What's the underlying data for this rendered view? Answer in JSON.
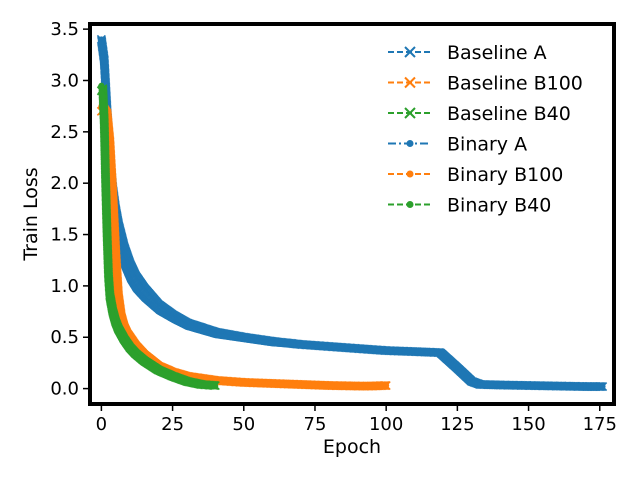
{
  "chart_data": {
    "type": "line",
    "title": "",
    "xlabel": "Epoch",
    "ylabel": "Train Loss",
    "xlim": [
      -4,
      180
    ],
    "ylim": [
      -0.15,
      3.55
    ],
    "x_ticks": [
      0,
      25,
      50,
      75,
      100,
      125,
      150,
      175
    ],
    "y_ticks": [
      0.0,
      0.5,
      1.0,
      1.5,
      2.0,
      2.5,
      3.0,
      3.5
    ],
    "x_tick_labels": [
      "0",
      "25",
      "50",
      "75",
      "100",
      "125",
      "150",
      "175"
    ],
    "y_tick_labels": [
      "0.0",
      "0.5",
      "1.0",
      "1.5",
      "2.0",
      "2.5",
      "3.0",
      "3.5"
    ],
    "grid": false,
    "legend_position": "top-right",
    "series": [
      {
        "name": "Baseline A",
        "color": "#1f77b4",
        "marker": "x",
        "dash": "dashed",
        "x": [
          0,
          1,
          2,
          3,
          4,
          5,
          6,
          8,
          10,
          12,
          15,
          20,
          25,
          30,
          40,
          50,
          60,
          70,
          80,
          90,
          100,
          110,
          119,
          125,
          130,
          133,
          140,
          150,
          160,
          170,
          176
        ],
        "y": [
          3.4,
          3.2,
          2.7,
          2.25,
          1.95,
          1.75,
          1.6,
          1.38,
          1.22,
          1.1,
          0.98,
          0.82,
          0.72,
          0.64,
          0.55,
          0.5,
          0.46,
          0.43,
          0.41,
          0.39,
          0.37,
          0.36,
          0.35,
          0.2,
          0.07,
          0.04,
          0.035,
          0.03,
          0.025,
          0.02,
          0.02
        ]
      },
      {
        "name": "Baseline B100",
        "color": "#ff7f0e",
        "marker": "x",
        "dash": "dashed",
        "x": [
          0,
          1,
          2,
          3,
          4,
          5,
          6,
          7,
          8,
          9,
          10,
          12,
          15,
          20,
          25,
          30,
          40,
          50,
          60,
          70,
          80,
          90,
          95,
          100
        ],
        "y": [
          2.7,
          2.72,
          2.68,
          2.4,
          1.9,
          1.35,
          0.9,
          0.7,
          0.6,
          0.54,
          0.5,
          0.42,
          0.33,
          0.22,
          0.16,
          0.12,
          0.08,
          0.06,
          0.05,
          0.04,
          0.03,
          0.025,
          0.025,
          0.03
        ]
      },
      {
        "name": "Baseline B40",
        "color": "#2ca02c",
        "marker": "x",
        "dash": "dashed",
        "x": [
          0,
          0.5,
          1,
          1.5,
          2,
          2.5,
          3,
          4,
          5,
          6,
          8,
          10,
          12,
          15,
          20,
          25,
          30,
          35,
          40
        ],
        "y": [
          2.9,
          2.92,
          2.6,
          2.0,
          1.5,
          1.1,
          0.9,
          0.75,
          0.65,
          0.58,
          0.48,
          0.4,
          0.34,
          0.27,
          0.18,
          0.12,
          0.07,
          0.04,
          0.03
        ]
      },
      {
        "name": "Binary A",
        "color": "#1f77b4",
        "marker": "dot",
        "dash": "dashdot",
        "x": [
          0,
          1,
          2,
          3,
          4,
          5,
          6,
          8,
          10,
          12,
          15,
          20,
          25,
          30,
          40,
          50,
          60,
          70,
          80,
          90,
          100,
          110,
          119,
          125,
          130,
          133,
          140,
          150,
          160,
          170,
          176
        ],
        "y": [
          3.4,
          3.0,
          2.4,
          2.0,
          1.7,
          1.5,
          1.35,
          1.18,
          1.05,
          0.96,
          0.87,
          0.75,
          0.67,
          0.6,
          0.52,
          0.48,
          0.44,
          0.42,
          0.4,
          0.38,
          0.37,
          0.36,
          0.34,
          0.2,
          0.06,
          0.04,
          0.035,
          0.03,
          0.025,
          0.02,
          0.02
        ]
      },
      {
        "name": "Binary B100",
        "color": "#ff7f0e",
        "marker": "dot",
        "dash": "dashed",
        "x": [
          0,
          1,
          2,
          3,
          4,
          5,
          6,
          7,
          8,
          9,
          10,
          12,
          15,
          20,
          25,
          30,
          40,
          50,
          60,
          70,
          80,
          90,
          95,
          100
        ],
        "y": [
          2.75,
          2.7,
          2.6,
          2.2,
          1.7,
          1.2,
          0.85,
          0.66,
          0.57,
          0.51,
          0.47,
          0.4,
          0.31,
          0.2,
          0.15,
          0.11,
          0.075,
          0.055,
          0.045,
          0.035,
          0.028,
          0.022,
          0.022,
          0.03
        ]
      },
      {
        "name": "Binary B40",
        "color": "#2ca02c",
        "marker": "dot",
        "dash": "dashed",
        "x": [
          0,
          0.5,
          1,
          1.5,
          2,
          2.5,
          3,
          4,
          5,
          6,
          8,
          10,
          12,
          15,
          20,
          25,
          30,
          35,
          40
        ],
        "y": [
          2.95,
          2.8,
          2.4,
          1.8,
          1.3,
          1.0,
          0.85,
          0.7,
          0.61,
          0.55,
          0.45,
          0.37,
          0.31,
          0.25,
          0.16,
          0.11,
          0.065,
          0.035,
          0.025
        ]
      }
    ]
  }
}
